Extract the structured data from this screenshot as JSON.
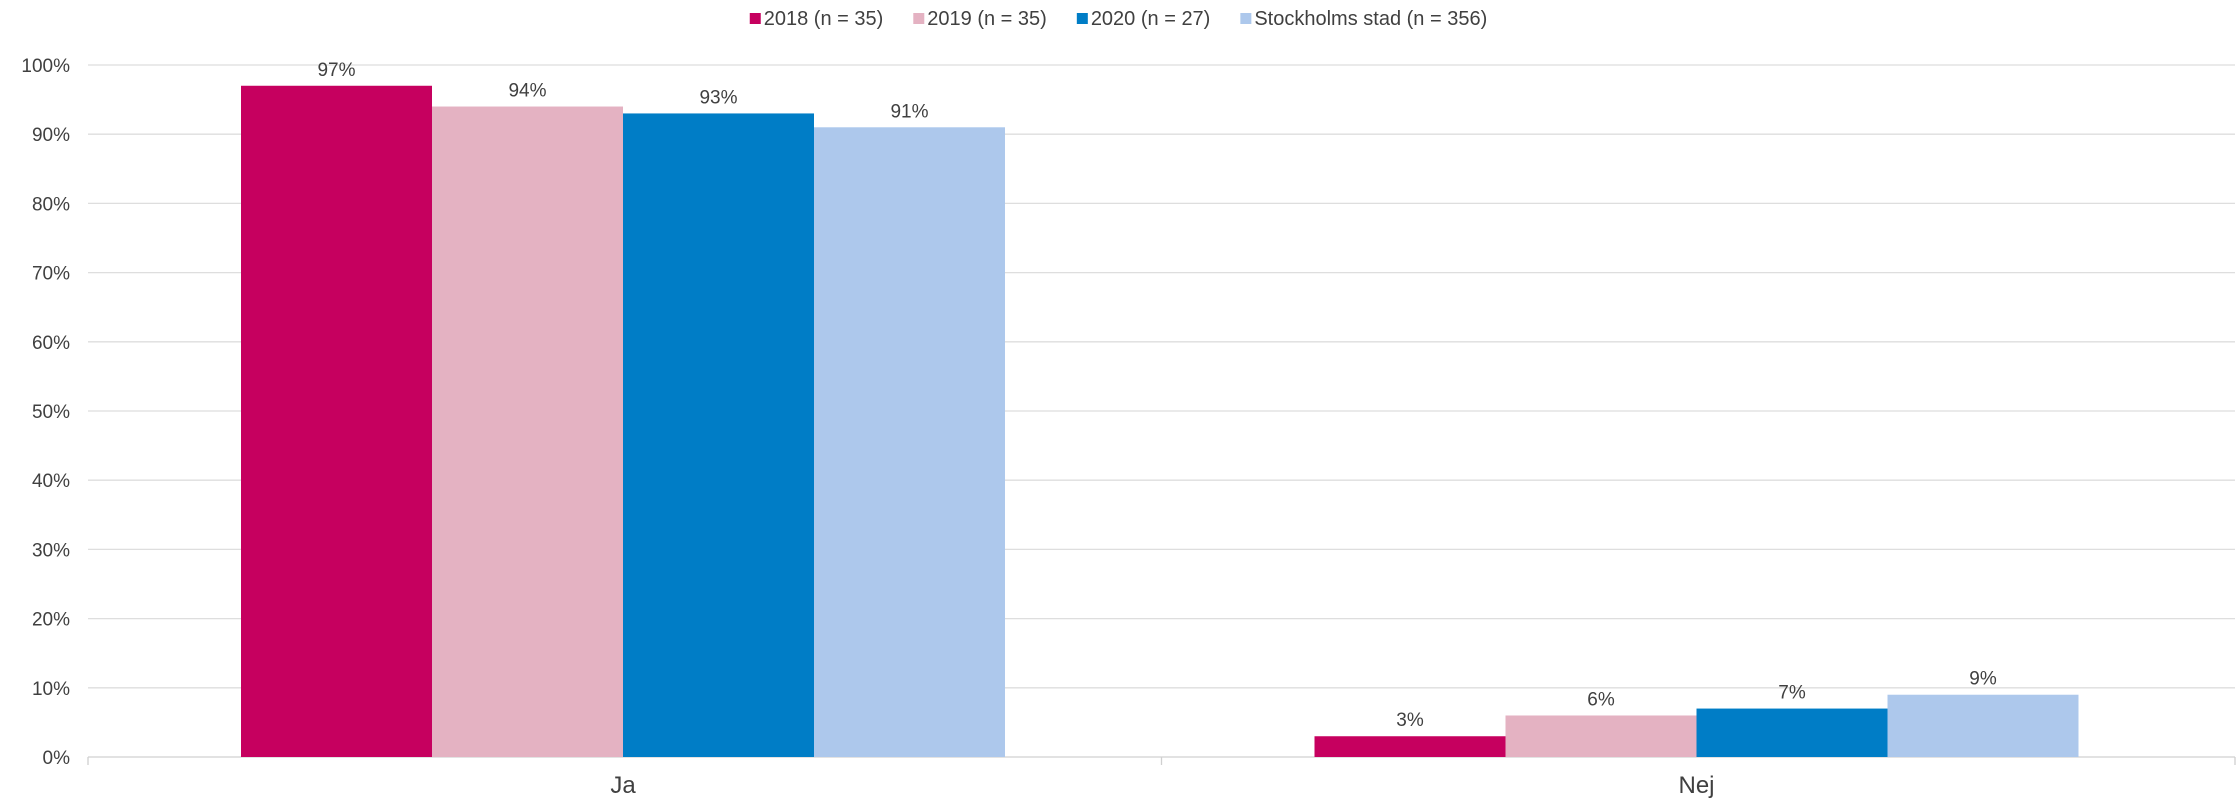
{
  "chart_data": {
    "type": "bar",
    "title": "",
    "xlabel": "",
    "ylabel": "",
    "categories": [
      "Ja",
      "Nej"
    ],
    "ylim": [
      0,
      100
    ],
    "yticks": [
      0,
      10,
      20,
      30,
      40,
      50,
      60,
      70,
      80,
      90,
      100
    ],
    "ytick_labels": [
      "0%",
      "10%",
      "20%",
      "30%",
      "40%",
      "50%",
      "60%",
      "70%",
      "80%",
      "90%",
      "100%"
    ],
    "grid": true,
    "legend_position": "top-center",
    "series": [
      {
        "name": "2018  (n = 35)",
        "color": "#C6005F",
        "values": [
          97,
          3
        ],
        "labels": [
          "97%",
          "3%"
        ]
      },
      {
        "name": "2019  (n = 35)",
        "color": "#E4B2C2",
        "values": [
          94,
          6
        ],
        "labels": [
          "94%",
          "6%"
        ]
      },
      {
        "name": "2020  (n = 27)",
        "color": "#007DC6",
        "values": [
          93,
          7
        ],
        "labels": [
          "93%",
          "7%"
        ]
      },
      {
        "name": "Stockholms stad  (n = 356)",
        "color": "#ADC8EC",
        "values": [
          91,
          9
        ],
        "labels": [
          "91%",
          "9%"
        ]
      }
    ]
  }
}
